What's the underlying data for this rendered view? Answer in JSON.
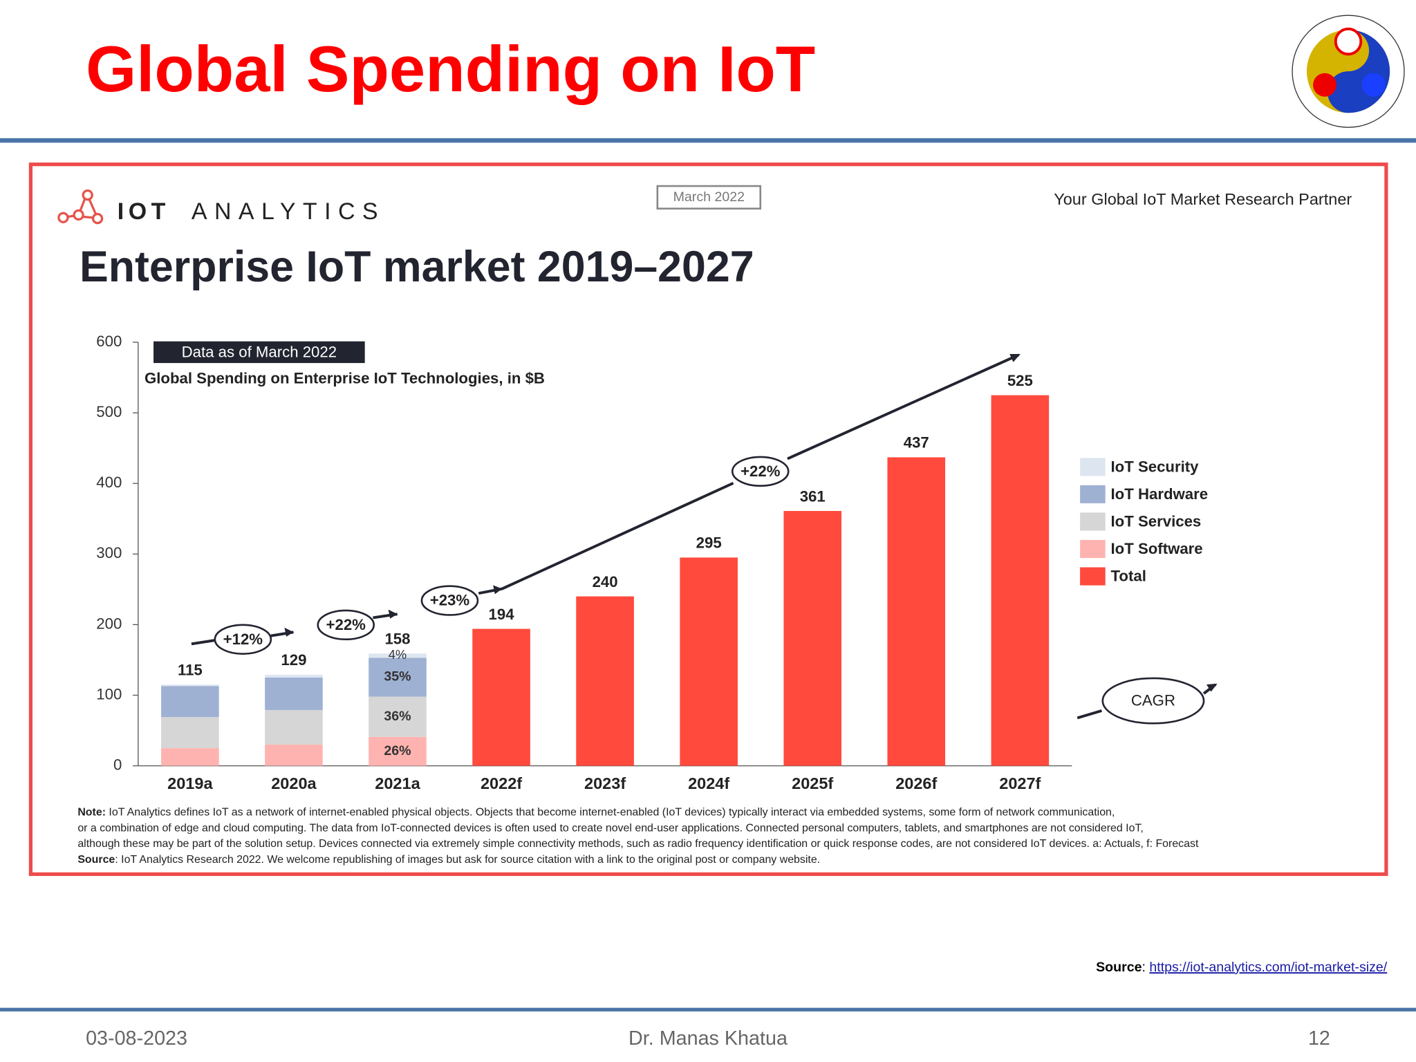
{
  "slide": {
    "title": "Global Spending on IoT",
    "source_label": "Source",
    "source_url": "https://iot-analytics.com/iot-market-size/",
    "footer": {
      "date": "03-08-2023",
      "author": "Dr. Manas Khatua",
      "page": "12"
    }
  },
  "chart_data": {
    "type": "bar",
    "stacked": true,
    "brand": "IOT",
    "brand_rest": "ANALYTICS",
    "date_badge": "March 2022",
    "tagline": "Your Global IoT Market Research Partner",
    "title": "Enterprise IoT market 2019–2027",
    "data_badge": "Data as of March 2022",
    "subtitle": "Global Spending on Enterprise IoT Technologies, in $B",
    "categories": [
      "2019a",
      "2020a",
      "2021a",
      "2022f",
      "2023f",
      "2024f",
      "2025f",
      "2026f",
      "2027f"
    ],
    "series": [
      {
        "name": "IoT Security",
        "color": "#dde6f0",
        "values": [
          2,
          4,
          6,
          null,
          null,
          null,
          null,
          null,
          null
        ]
      },
      {
        "name": "IoT Hardware",
        "color": "#9eb1d2",
        "values": [
          44,
          46,
          55,
          null,
          null,
          null,
          null,
          null,
          null
        ]
      },
      {
        "name": "IoT Services",
        "color": "#d6d6d6",
        "values": [
          44,
          49,
          57,
          null,
          null,
          null,
          null,
          null,
          null
        ]
      },
      {
        "name": "IoT Software",
        "color": "#ffb3b0",
        "values": [
          25,
          30,
          41,
          null,
          null,
          null,
          null,
          null,
          null
        ]
      },
      {
        "name": "Total",
        "color": "#ff4a3d",
        "values": [
          115,
          129,
          158,
          194,
          240,
          295,
          361,
          437,
          525
        ]
      }
    ],
    "share_category": "2021a",
    "share_labels": [
      "4%",
      "35%",
      "36%",
      "26%"
    ],
    "cagr_labels": [
      "+12%",
      "+22%",
      "+23%",
      "+22%"
    ],
    "cagr_legend": "CAGR",
    "ylim": [
      0,
      600
    ],
    "yticks": [
      0,
      100,
      200,
      300,
      400,
      500,
      600
    ],
    "note": {
      "label": "Note:",
      "lines": [
        " IoT Analytics defines IoT as a network of internet-enabled physical objects. Objects that become internet-enabled (IoT devices) typically interact via embedded systems, some form of network communication,",
        "or a combination of edge and cloud computing. The data from IoT-connected devices is often used to create novel end-user applications. Connected personal computers, tablets, and smartphones are not considered IoT,",
        "although these may be part of the solution setup. Devices connected via extremely simple connectivity methods, such as radio frequency identification or quick response codes, are not considered IoT devices. a: Actuals, f: Forecast"
      ]
    },
    "source": {
      "label": "Source",
      "text": ": IoT Analytics Research 2022. We welcome republishing of images but ask for source citation with a link to the original post or company website."
    }
  }
}
